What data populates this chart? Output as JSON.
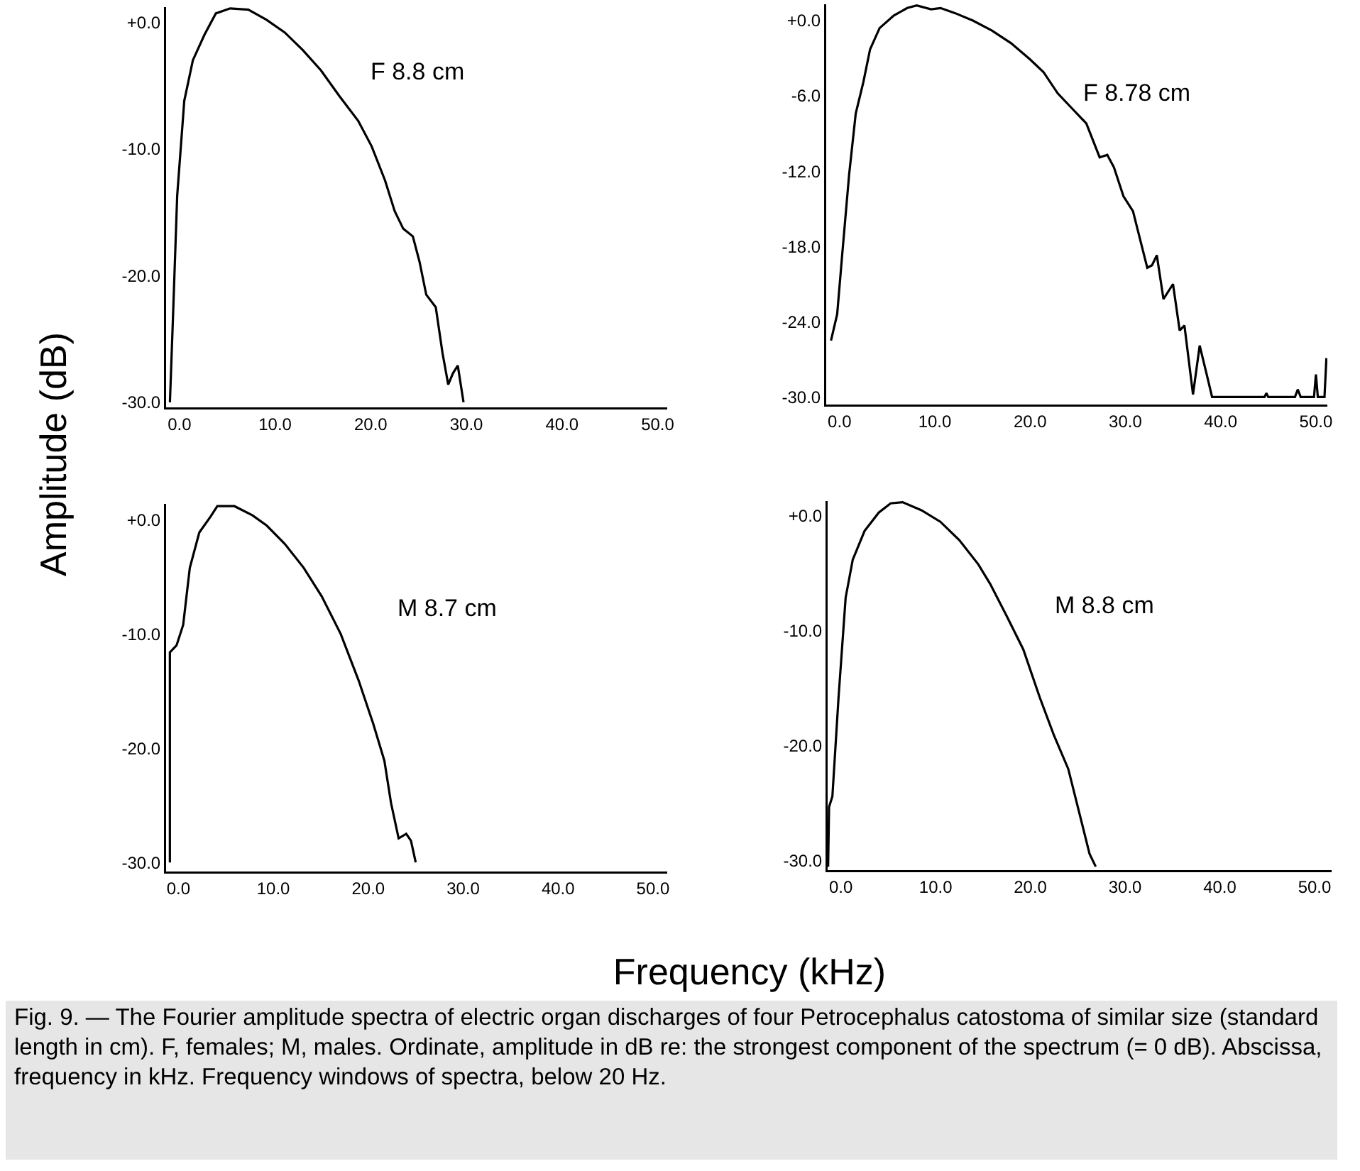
{
  "chart_data": [
    {
      "type": "line",
      "title": "F 8.8 cm",
      "ylabel": "Amplitude (dB)",
      "xlabel": "Frequency (kHz)",
      "annotations": [
        "Fig. 9. — The Fourier amplitude spectra of electric organ discharges of four Petrocephalus catostoma of similar size (standard length in cm). F, females; M, males. Ordinate, amplitude in dB re: the strongest component of the spectrum (= 0 dB). Abscissa, frequency in kHz. Frequency windows of spectra, below 20 Hz."
      ],
      "series": [
        {
          "color": "#000000",
          "x": [
            -1,
            -0.7,
            -0.24,
            0.5,
            1.4,
            2.6,
            3.8,
            5.3,
            7.2,
            9.1,
            11,
            12.9,
            14.8,
            16.7,
            18.7,
            20.1,
            21.5,
            22.5,
            23.4,
            24.4,
            25.1,
            25.8,
            26.8,
            27.5,
            28.1,
            28.6,
            29.1,
            29.7
          ],
          "values": [
            -30,
            -23.7,
            -13.7,
            -6.2,
            -3,
            -1,
            0.7,
            1.1,
            1,
            0.2,
            -0.8,
            -2.2,
            -3.8,
            -5.8,
            -7.8,
            -9.8,
            -12.5,
            -14.9,
            -16.3,
            -16.9,
            -18.9,
            -21.5,
            -22.5,
            -26.1,
            -28.6,
            -27.7,
            -27.1,
            -30
          ]
        }
      ],
      "xlim": [
        -1.4,
        51
      ],
      "ylim": [
        -30.4,
        1.2
      ],
      "xticks": [
        {
          "value": 0,
          "label": "0.0"
        },
        {
          "value": 10,
          "label": "10.0"
        },
        {
          "value": 20,
          "label": "20.0"
        },
        {
          "value": 30,
          "label": "30.0"
        },
        {
          "value": 40,
          "label": "40.0"
        },
        {
          "value": 50,
          "label": "50.0"
        }
      ],
      "yticks": [
        {
          "value": 0,
          "label": "+0.0"
        },
        {
          "value": -10,
          "label": "-10.0"
        },
        {
          "value": -20,
          "label": "-20.0"
        },
        {
          "value": -30,
          "label": "-30.0"
        }
      ]
    },
    {
      "type": "line",
      "title": "F 8.78 cm",
      "series": [
        {
          "color": "#000000",
          "x": [
            -0.9,
            -0.25,
            0.25,
            1,
            1.7,
            2.5,
            3.2,
            4.2,
            5.7,
            7.1,
            8.1,
            9.6,
            10.6,
            12.1,
            14,
            16,
            18,
            20,
            21.4,
            22.9,
            24.4,
            25.9,
            27.3,
            28.1,
            28.8,
            29.8,
            30.8,
            31.5,
            32.3,
            32.8,
            33.3,
            34,
            35,
            35.7,
            36.2,
            37.1,
            37.8,
            38.6,
            39.1,
            44.6,
            44.8,
            45,
            47.8,
            48.1,
            48.4,
            49.8,
            50,
            50.2,
            50.9,
            51.1
          ],
          "values": [
            -25.5,
            -23.4,
            -18.9,
            -12.3,
            -7.4,
            -4.9,
            -2.3,
            -0.6,
            0.4,
            1,
            1.2,
            0.9,
            1,
            0.6,
            0,
            -0.8,
            -1.8,
            -3.1,
            -4.1,
            -5.8,
            -7,
            -8.2,
            -10.9,
            -10.7,
            -11.7,
            -14,
            -15.2,
            -17.3,
            -19.7,
            -19.5,
            -18.7,
            -22.2,
            -21,
            -24.7,
            -24.3,
            -29.8,
            -25.9,
            -28.4,
            -30,
            -30,
            -29.7,
            -30,
            -30,
            -29.4,
            -30,
            -30,
            -28.2,
            -30,
            -30,
            -26.9
          ]
        }
      ],
      "xlim": [
        -1.4,
        51.2
      ],
      "ylim": [
        -30.6,
        1.3
      ],
      "xticks": [
        {
          "value": 0,
          "label": "0.0"
        },
        {
          "value": 10,
          "label": "10.0"
        },
        {
          "value": 20,
          "label": "20.0"
        },
        {
          "value": 30,
          "label": "30.0"
        },
        {
          "value": 40,
          "label": "40.0"
        },
        {
          "value": 50,
          "label": "50.0"
        }
      ],
      "yticks": [
        {
          "value": 0,
          "label": "+0.0"
        },
        {
          "value": -6,
          "label": "-6.0"
        },
        {
          "value": -12,
          "label": "-12.0"
        },
        {
          "value": -18,
          "label": "-18.0"
        },
        {
          "value": -24,
          "label": "-24.0"
        },
        {
          "value": -30,
          "label": "-30.0"
        }
      ]
    },
    {
      "type": "line",
      "title": "M 8.7 cm",
      "series": [
        {
          "color": "#000000",
          "x": [
            -0.9,
            -0.9,
            -0.2,
            0.5,
            1.2,
            2.2,
            3.4,
            4.1,
            5.9,
            7.8,
            9.3,
            11.2,
            13.2,
            15.1,
            17.1,
            19,
            20.5,
            21.7,
            22.4,
            23.2,
            24,
            24.5,
            25
          ],
          "values": [
            -30,
            -11.6,
            -11,
            -9.2,
            -4.2,
            -1.1,
            0.3,
            1.2,
            1.2,
            0.4,
            -0.5,
            -2.1,
            -4.2,
            -6.7,
            -10,
            -14.1,
            -17.8,
            -21.1,
            -24.8,
            -27.9,
            -27.5,
            -28.1,
            -30
          ]
        }
      ],
      "xlim": [
        -1.3,
        51.5
      ],
      "ylim": [
        -30.8,
        1.4
      ],
      "xticks": [
        {
          "value": 0,
          "label": "0.0"
        },
        {
          "value": 10,
          "label": "10.0"
        },
        {
          "value": 20,
          "label": "20.0"
        },
        {
          "value": 30,
          "label": "30.0"
        },
        {
          "value": 40,
          "label": "40.0"
        },
        {
          "value": 50,
          "label": "50.0"
        }
      ],
      "yticks": [
        {
          "value": 0,
          "label": "+0.0"
        },
        {
          "value": -10,
          "label": "-10.0"
        },
        {
          "value": -20,
          "label": "-20.0"
        },
        {
          "value": -30,
          "label": "-30.0"
        }
      ]
    },
    {
      "type": "line",
      "title": "M 8.8 cm",
      "series": [
        {
          "color": "#000000",
          "x": [
            -1.35,
            -1.25,
            -0.9,
            -0.25,
            0.5,
            1.25,
            2.5,
            4,
            5.25,
            6.5,
            8.5,
            10.5,
            12.5,
            14.5,
            15.75,
            17.5,
            19.25,
            21,
            22.5,
            24,
            25.25,
            26.25,
            26.9
          ],
          "values": [
            -30.5,
            -25.3,
            -24.4,
            -15.8,
            -7.1,
            -3.8,
            -1.3,
            0.3,
            1.1,
            1.2,
            0.5,
            -0.5,
            -2.1,
            -4.2,
            -5.9,
            -8.7,
            -11.6,
            -15.8,
            -19.1,
            -22,
            -26.1,
            -29.4,
            -30.5
          ]
        }
      ],
      "xlim": [
        -1.4,
        51.8
      ],
      "ylim": [
        -30.8,
        1.3
      ],
      "xticks": [
        {
          "value": 0,
          "label": "0.0"
        },
        {
          "value": 10,
          "label": "10.0"
        },
        {
          "value": 20,
          "label": "20.0"
        },
        {
          "value": 30,
          "label": "30.0"
        },
        {
          "value": 40,
          "label": "40.0"
        },
        {
          "value": 50,
          "label": "50.0"
        }
      ],
      "yticks": [
        {
          "value": 0,
          "label": "+0.0"
        },
        {
          "value": -10,
          "label": "-10.0"
        },
        {
          "value": -20,
          "label": "-20.0"
        },
        {
          "value": -30,
          "label": "-30.0"
        }
      ]
    }
  ]
}
